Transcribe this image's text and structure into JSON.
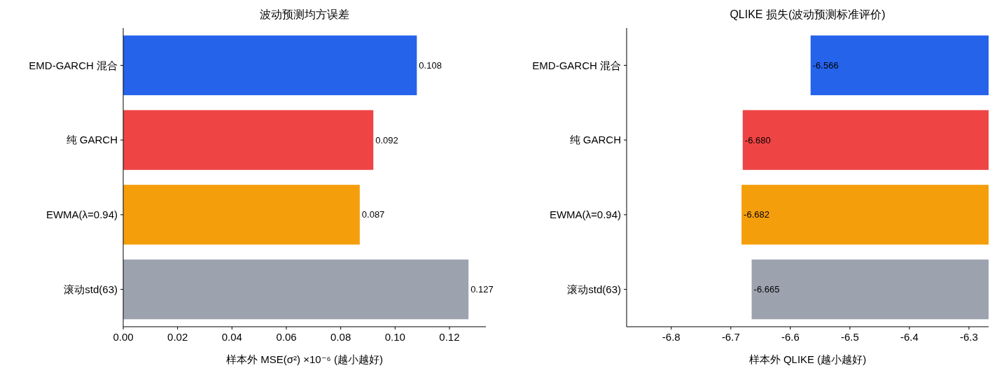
{
  "chart_data": [
    {
      "type": "bar",
      "orientation": "horizontal",
      "title": "波动预测均方误差",
      "xlabel": "样本外 MSE(σ²) ×10⁻⁶  (越小越好)",
      "categories": [
        "EMD-GARCH 混合",
        "纯 GARCH",
        "EWMA(λ=0.94)",
        "滚动std(63)"
      ],
      "values": [
        0.108,
        0.092,
        0.087,
        0.127
      ],
      "colors": [
        "#2563eb",
        "#ef4444",
        "#f59e0b",
        "#9ca3af"
      ],
      "xlim": [
        0,
        0.1334
      ],
      "xticks": [
        {
          "value": 0,
          "label": "0.00"
        },
        {
          "value": 0.02,
          "label": "0.02"
        },
        {
          "value": 0.04,
          "label": "0.04"
        },
        {
          "value": 0.06,
          "label": "0.06"
        },
        {
          "value": 0.08,
          "label": "0.08"
        },
        {
          "value": 0.1,
          "label": "0.10"
        },
        {
          "value": 0.12,
          "label": "0.12"
        }
      ],
      "data_labels": true,
      "grid": false
    },
    {
      "type": "bar",
      "orientation": "horizontal",
      "title": "QLIKE 损失(波动预测标准评价)",
      "xlabel": "样本外 QLIKE  (越小越好)",
      "categories": [
        "EMD-GARCH 混合",
        "纯 GARCH",
        "EWMA(λ=0.94)",
        "滚动std(63)"
      ],
      "values": [
        -6.566,
        -6.68,
        -6.682,
        -6.665
      ],
      "colors": [
        "#2563eb",
        "#ef4444",
        "#f59e0b",
        "#9ca3af"
      ],
      "xlim": [
        -6.875,
        -6.267
      ],
      "xticks": [
        -6.8,
        -6.7,
        -6.6,
        -6.5,
        -6.4,
        -6.3
      ],
      "value_labels": [
        "-6.566",
        "-6.680",
        "-6.682",
        "-6.665"
      ],
      "grid": false
    }
  ]
}
